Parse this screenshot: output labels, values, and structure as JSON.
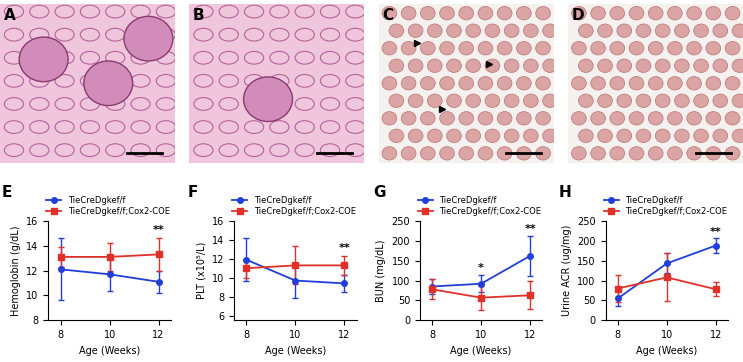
{
  "image_panels": [
    {
      "label": "A",
      "kind": "kidney"
    },
    {
      "label": "B",
      "kind": "kidney"
    },
    {
      "label": "C",
      "kind": "smear"
    },
    {
      "label": "D",
      "kind": "smear"
    }
  ],
  "chart_data": [
    {
      "type": "line",
      "label": "E",
      "x_label": "Age (Weeks)",
      "y_label": "Hemoglobin (g/dL)",
      "x": [
        8,
        10,
        12
      ],
      "xlim": [
        7.5,
        12.5
      ],
      "xticks": [
        8,
        10,
        12
      ],
      "ylim": [
        8,
        16
      ],
      "yticks": [
        8,
        10,
        12,
        14,
        16
      ],
      "legend": "top",
      "series": [
        {
          "name": "TieCreDgkef/f",
          "color": "#1f3fd8",
          "marker": "circle",
          "values": [
            12.1,
            11.7,
            11.1
          ],
          "error": [
            2.5,
            1.3,
            0.9
          ]
        },
        {
          "name": "TieCreDgkef/f;Cox2-COE",
          "color": "#e0302a",
          "marker": "square",
          "values": [
            13.1,
            13.1,
            13.3
          ],
          "error": [
            0.8,
            1.1,
            1.3
          ]
        }
      ],
      "annotations": [
        {
          "text": "**",
          "x": 12,
          "y": 14.9
        }
      ]
    },
    {
      "type": "line",
      "label": "F",
      "x_label": "Age (Weeks)",
      "y_label": "PLT (x10⁵/L)",
      "x": [
        8,
        10,
        12
      ],
      "xlim": [
        7.5,
        12.5
      ],
      "xticks": [
        8,
        10,
        12
      ],
      "ylim": [
        5.5,
        16
      ],
      "yticks": [
        6,
        8,
        10,
        12,
        14,
        16
      ],
      "legend": "top",
      "series": [
        {
          "name": "TieCreDgkef/f",
          "color": "#1f3fd8",
          "marker": "circle",
          "values": [
            11.9,
            9.7,
            9.4
          ],
          "error": [
            2.3,
            1.8,
            0.9
          ]
        },
        {
          "name": "TieCreDgkef/f;Cox2-COE",
          "color": "#e0302a",
          "marker": "square",
          "values": [
            11.0,
            11.3,
            11.3
          ],
          "error": [
            1.0,
            2.0,
            1.0
          ]
        }
      ],
      "annotations": [
        {
          "text": "**",
          "x": 12,
          "y": 12.6
        }
      ]
    },
    {
      "type": "line",
      "label": "G",
      "x_label": "Age (Weeks)",
      "y_label": "BUN (mg/dL)",
      "x": [
        8,
        10,
        12
      ],
      "xlim": [
        7.5,
        12.5
      ],
      "xticks": [
        8,
        10,
        12
      ],
      "ylim": [
        0,
        250
      ],
      "yticks": [
        0,
        50,
        100,
        150,
        200,
        250
      ],
      "legend": "top",
      "series": [
        {
          "name": "TieCreDgkef/f",
          "color": "#1f3fd8",
          "marker": "circle",
          "values": [
            85,
            92,
            162
          ],
          "error": [
            18,
            22,
            50
          ]
        },
        {
          "name": "TieCreDgkef/f;Cox2-COE",
          "color": "#e0302a",
          "marker": "square",
          "values": [
            78,
            57,
            63
          ],
          "error": [
            25,
            30,
            35
          ]
        }
      ],
      "annotations": [
        {
          "text": "*",
          "x": 10,
          "y": 118
        },
        {
          "text": "**",
          "x": 12,
          "y": 216
        }
      ]
    },
    {
      "type": "line",
      "label": "H",
      "x_label": "Age (Weeks)",
      "y_label": "Urine ACR (ug/mg)",
      "x": [
        8,
        10,
        12
      ],
      "xlim": [
        7.5,
        12.5
      ],
      "xticks": [
        8,
        10,
        12
      ],
      "ylim": [
        0,
        250
      ],
      "yticks": [
        0,
        50,
        100,
        150,
        200,
        250
      ],
      "legend": "top",
      "series": [
        {
          "name": "TieCreDgkef/f",
          "color": "#1f3fd8",
          "marker": "circle",
          "values": [
            55,
            143,
            188
          ],
          "error": [
            20,
            25,
            18
          ]
        },
        {
          "name": "TieCreDgkef/f;Cox2-COE",
          "color": "#e0302a",
          "marker": "square",
          "values": [
            80,
            108,
            78
          ],
          "error": [
            35,
            60,
            18
          ]
        }
      ],
      "annotations": [
        {
          "text": "**",
          "x": 12,
          "y": 210
        }
      ]
    }
  ]
}
